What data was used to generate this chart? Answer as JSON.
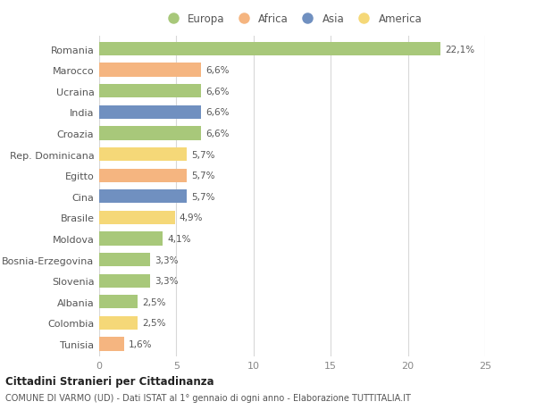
{
  "countries": [
    "Romania",
    "Marocco",
    "Ucraina",
    "India",
    "Croazia",
    "Rep. Dominicana",
    "Egitto",
    "Cina",
    "Brasile",
    "Moldova",
    "Bosnia-Erzegovina",
    "Slovenia",
    "Albania",
    "Colombia",
    "Tunisia"
  ],
  "values": [
    22.1,
    6.6,
    6.6,
    6.6,
    6.6,
    5.7,
    5.7,
    5.7,
    4.9,
    4.1,
    3.3,
    3.3,
    2.5,
    2.5,
    1.6
  ],
  "labels": [
    "22,1%",
    "6,6%",
    "6,6%",
    "6,6%",
    "6,6%",
    "5,7%",
    "5,7%",
    "5,7%",
    "4,9%",
    "4,1%",
    "3,3%",
    "3,3%",
    "2,5%",
    "2,5%",
    "1,6%"
  ],
  "colors": [
    "#a8c87a",
    "#f5b580",
    "#a8c87a",
    "#7090c0",
    "#a8c87a",
    "#f5d878",
    "#f5b580",
    "#7090c0",
    "#f5d878",
    "#a8c87a",
    "#a8c87a",
    "#a8c87a",
    "#a8c87a",
    "#f5d878",
    "#f5b580"
  ],
  "legend": [
    {
      "label": "Europa",
      "color": "#a8c87a"
    },
    {
      "label": "Africa",
      "color": "#f5b580"
    },
    {
      "label": "Asia",
      "color": "#7090c0"
    },
    {
      "label": "America",
      "color": "#f5d878"
    }
  ],
  "xlim": [
    0,
    25
  ],
  "xticks": [
    0,
    5,
    10,
    15,
    20,
    25
  ],
  "title1": "Cittadini Stranieri per Cittadinanza",
  "title2": "COMUNE DI VARMO (UD) - Dati ISTAT al 1° gennaio di ogni anno - Elaborazione TUTTITALIA.IT",
  "bg_color": "#ffffff",
  "grid_color": "#d8d8d8"
}
